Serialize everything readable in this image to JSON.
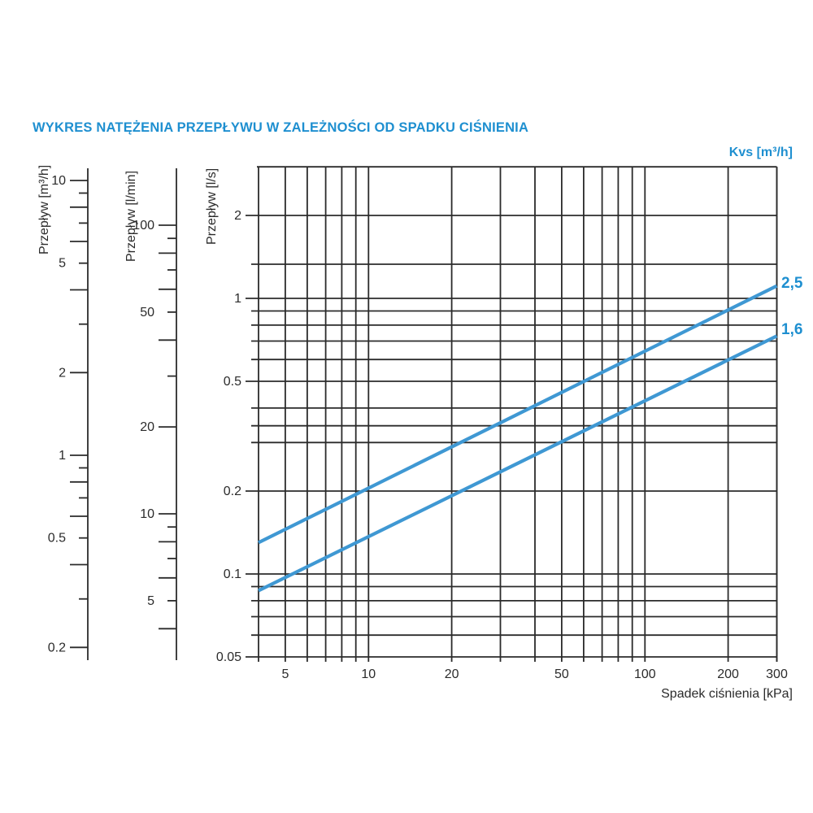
{
  "title": "WYKRES NATĘŻENIA PRZEPŁYWU W ZALEŻNOŚCI OD SPADKU CIŚNIENIA",
  "kvs_header": "Kvs [m³/h]",
  "x_axis_label": "Spadek ciśnienia [kPa]",
  "colors": {
    "accent_blue": "#1e8fd0",
    "curve_blue": "#3f98d3",
    "grid": "#2b2b2b",
    "text": "#2b2b2b"
  },
  "chart_data": {
    "type": "line",
    "title": "WYKRES NATĘŻENIA PRZEPŁYWU W ZALEŻNOŚCI OD SPADKU CIŚNIENIA",
    "x_scale": "log",
    "y_scale": "log",
    "grid": true,
    "xlabel": "Spadek ciśnienia [kPa]",
    "xlim": [
      4,
      300
    ],
    "x_ticks": [
      {
        "label": "5",
        "value": 5
      },
      {
        "label": "10",
        "value": 10
      },
      {
        "label": "20",
        "value": 20
      },
      {
        "label": "50",
        "value": 50
      },
      {
        "label": "100",
        "value": 100
      },
      {
        "label": "200",
        "value": 200
      },
      {
        "label": "300",
        "value": 300
      }
    ],
    "x_gridlines": [
      5,
      6,
      7,
      8,
      9,
      10,
      20,
      30,
      40,
      50,
      60,
      70,
      80,
      90,
      100,
      200,
      300
    ],
    "y_axes": [
      {
        "id": "m3h",
        "label": "Przepływ [m³/h]",
        "unit": "m³/h",
        "ticks": [
          {
            "label": "10",
            "value": 10
          },
          {
            "label": "5",
            "value": 5
          },
          {
            "label": "2",
            "value": 2
          },
          {
            "label": "1",
            "value": 1
          },
          {
            "label": "0.5",
            "value": 0.5
          },
          {
            "label": "0.2",
            "value": 0.2
          }
        ],
        "minor_ticks_long": [
          10,
          8,
          6,
          4,
          2,
          1,
          0.8,
          0.6,
          0.4,
          0.2
        ],
        "minor_ticks_short": [
          9,
          7,
          5,
          3,
          0.9,
          0.7,
          0.5,
          0.3
        ]
      },
      {
        "id": "lmin",
        "label": "Przepływ [l/min]",
        "unit": "l/min",
        "ticks": [
          {
            "label": "100",
            "value": 100
          },
          {
            "label": "50",
            "value": 50
          },
          {
            "label": "20",
            "value": 20
          },
          {
            "label": "10",
            "value": 10
          },
          {
            "label": "5",
            "value": 5
          }
        ],
        "minor_ticks_long": [
          100,
          80,
          60,
          40,
          20,
          10,
          8,
          6,
          4
        ],
        "minor_ticks_short": [
          90,
          70,
          50,
          30,
          9,
          7,
          5
        ]
      },
      {
        "id": "ls",
        "label": "Przepływ [l/s]",
        "unit": "l/s",
        "ylim": [
          0.05,
          3
        ],
        "ticks": [
          {
            "label": "2",
            "value": 2
          },
          {
            "label": "1",
            "value": 1
          },
          {
            "label": "0.5",
            "value": 0.5
          },
          {
            "label": "0.2",
            "value": 0.2
          },
          {
            "label": "0.1",
            "value": 0.1
          },
          {
            "label": "0.05",
            "value": 0.05
          }
        ],
        "gridlines": [
          2,
          1.33,
          1,
          0.9,
          0.8,
          0.7,
          0.6,
          0.5,
          0.4,
          0.345,
          0.3,
          0.2,
          0.1,
          0.09,
          0.08,
          0.07,
          0.06
        ]
      }
    ],
    "legend_header": "Kvs [m³/h]",
    "series": [
      {
        "name": "2,5",
        "kvs_m3h": 2.5,
        "points": [
          {
            "kpa": 4,
            "ls": 0.13
          },
          {
            "kpa": 100,
            "ls": 0.69
          },
          {
            "kpa": 300,
            "ls": 1.11
          }
        ]
      },
      {
        "name": "1,6",
        "kvs_m3h": 1.6,
        "points": [
          {
            "kpa": 4,
            "ls": 0.087
          },
          {
            "kpa": 100,
            "ls": 0.43
          },
          {
            "kpa": 300,
            "ls": 0.73
          }
        ]
      }
    ]
  }
}
